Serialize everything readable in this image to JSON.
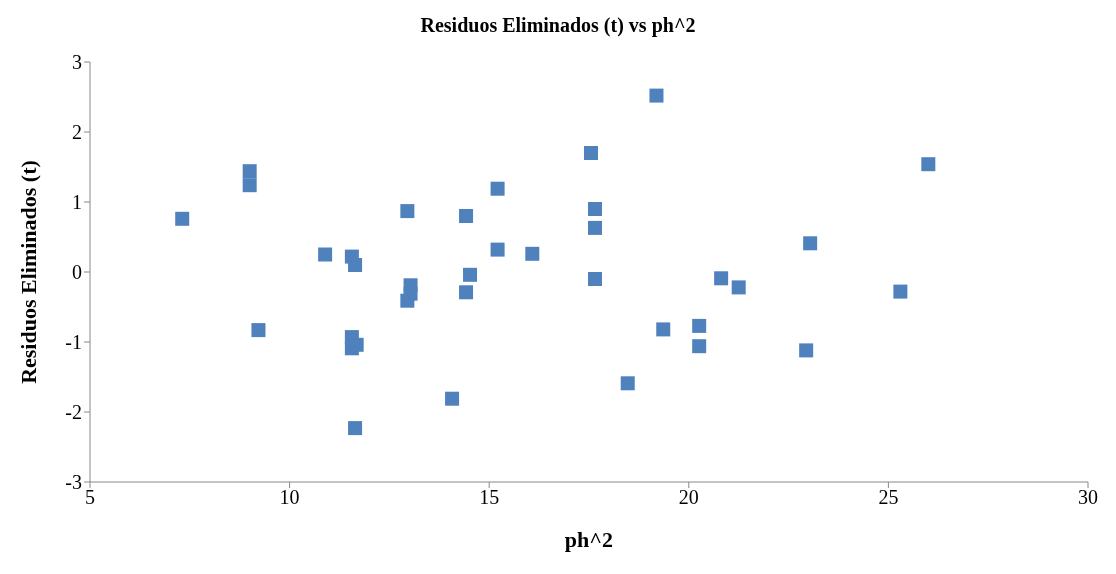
{
  "chart_data": {
    "type": "scatter",
    "title": "Residuos Eliminados (t) vs ph^2",
    "xlabel": "ph^2",
    "ylabel": "Residuos Eliminados (t)",
    "xlim": [
      5,
      30
    ],
    "xticks": [
      5,
      10,
      15,
      20,
      25,
      30
    ],
    "ylim": [
      -3,
      3
    ],
    "yticks": [
      -3,
      -2,
      -1,
      0,
      1,
      2,
      3
    ],
    "grid": false,
    "legend": false,
    "marker": "square",
    "series": [
      {
        "color": "#4f81bd",
        "x": [
          7.31,
          9.0,
          9.0,
          9.22,
          10.89,
          11.56,
          11.64,
          11.56,
          11.56,
          11.68,
          11.64,
          12.95,
          13.03,
          13.03,
          12.95,
          14.07,
          14.42,
          14.42,
          14.52,
          15.21,
          15.21,
          16.08,
          17.55,
          17.65,
          17.65,
          17.65,
          18.47,
          19.19,
          19.36,
          20.26,
          20.26,
          20.81,
          21.25,
          22.94,
          23.04,
          25.3,
          26.0
        ],
        "values": [
          0.76,
          1.44,
          1.24,
          -0.83,
          0.25,
          0.22,
          0.1,
          -0.93,
          -1.09,
          -1.04,
          -2.23,
          0.87,
          -0.19,
          -0.31,
          -0.41,
          -1.81,
          0.8,
          -0.29,
          -0.04,
          1.19,
          0.32,
          0.26,
          1.7,
          0.9,
          0.63,
          -0.1,
          -1.59,
          2.52,
          -0.82,
          -0.77,
          -1.06,
          -0.09,
          -0.22,
          -1.12,
          0.41,
          -0.28,
          1.54
        ]
      }
    ]
  }
}
